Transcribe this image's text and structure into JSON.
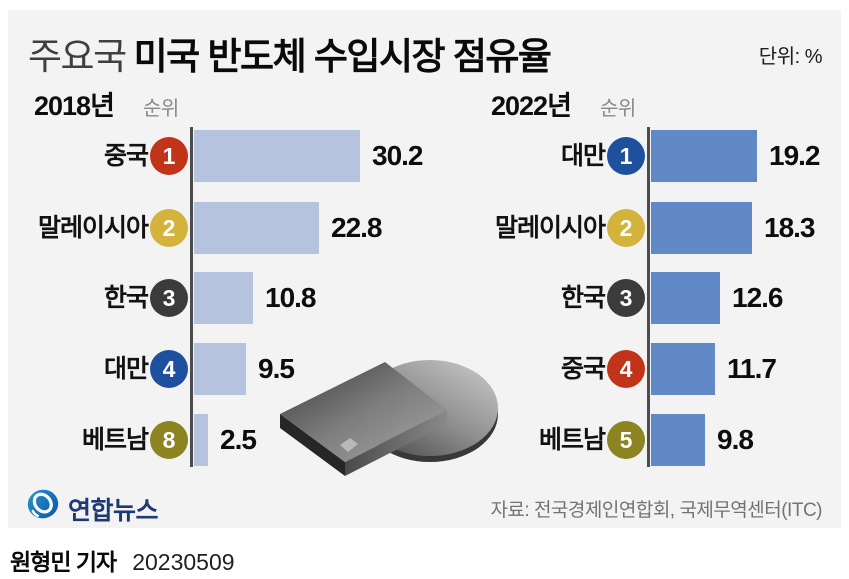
{
  "title": {
    "prefix": "주요국",
    "main": "미국 반도체 수입시장 점유율",
    "unit_label": "단위: %"
  },
  "charts": [
    {
      "year_label": "2018년",
      "rank_header": "순위",
      "bar_color": "#b5c3de",
      "rows": [
        {
          "country": "중국",
          "rank": "1",
          "badge_color": "#c23419",
          "value": 30.2,
          "value_label": "30.2"
        },
        {
          "country": "말레이시아",
          "rank": "2",
          "badge_color": "#d4b33c",
          "value": 22.8,
          "value_label": "22.8"
        },
        {
          "country": "한국",
          "rank": "3",
          "badge_color": "#3b3b3b",
          "value": 10.8,
          "value_label": "10.8"
        },
        {
          "country": "대만",
          "rank": "4",
          "badge_color": "#1e509e",
          "value": 9.5,
          "value_label": "9.5"
        },
        {
          "country": "베트남",
          "rank": "8",
          "badge_color": "#8b8420",
          "value": 2.5,
          "value_label": "2.5"
        }
      ]
    },
    {
      "year_label": "2022년",
      "rank_header": "순위",
      "bar_color": "#6189c5",
      "rows": [
        {
          "country": "대만",
          "rank": "1",
          "badge_color": "#1e509e",
          "value": 19.2,
          "value_label": "19.2"
        },
        {
          "country": "말레이시아",
          "rank": "2",
          "badge_color": "#d4b33c",
          "value": 18.3,
          "value_label": "18.3"
        },
        {
          "country": "한국",
          "rank": "3",
          "badge_color": "#3b3b3b",
          "value": 12.6,
          "value_label": "12.6"
        },
        {
          "country": "중국",
          "rank": "4",
          "badge_color": "#c23419",
          "value": 11.7,
          "value_label": "11.7"
        },
        {
          "country": "베트남",
          "rank": "5",
          "badge_color": "#8b8420",
          "value": 9.8,
          "value_label": "9.8"
        }
      ]
    }
  ],
  "footer": {
    "logo_text": "연합뉴스",
    "logo_color": "#1e3a72",
    "logo_icon_color": "#1173bd",
    "source": "자료: 전국경제인연합회, 국제무역센터(ITC)",
    "byline": "원형민 기자",
    "date": "20230509"
  },
  "colors": {
    "panel_background": "#f3f3f3",
    "axis_line": "#4c4c4c",
    "bar_2018": "#b5c3de",
    "bar_2022": "#6189c5",
    "badge_red": "#c23419",
    "badge_gold": "#d4b33c",
    "badge_dark": "#3b3b3b",
    "badge_blue": "#1e509e",
    "badge_olive": "#8b8420"
  },
  "chart_data": [
    {
      "type": "bar",
      "orientation": "horizontal",
      "title": "2018년",
      "unit": "%",
      "categories": [
        "중국",
        "말레이시아",
        "한국",
        "대만",
        "베트남"
      ],
      "values": [
        30.2,
        22.8,
        10.8,
        9.5,
        2.5
      ],
      "ranks": [
        1,
        2,
        3,
        4,
        8
      ],
      "xlim": [
        0,
        32
      ],
      "grid": false,
      "value_labels_shown": true
    },
    {
      "type": "bar",
      "orientation": "horizontal",
      "title": "2022년",
      "unit": "%",
      "categories": [
        "대만",
        "말레이시아",
        "한국",
        "중국",
        "베트남"
      ],
      "values": [
        19.2,
        18.3,
        12.6,
        11.7,
        9.8
      ],
      "ranks": [
        1,
        2,
        3,
        4,
        5
      ],
      "xlim": [
        0,
        32
      ],
      "grid": false,
      "value_labels_shown": true
    }
  ]
}
